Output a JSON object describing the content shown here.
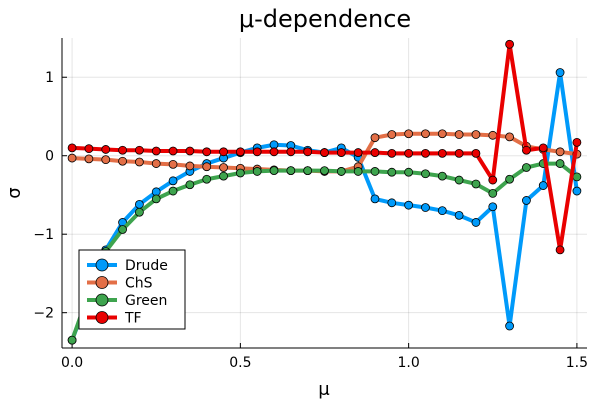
{
  "chart_data": {
    "type": "line",
    "title": "μ-dependence",
    "xlabel": "μ",
    "ylabel": "σ",
    "xlim": [
      -0.03,
      1.53
    ],
    "ylim": [
      -2.45,
      1.5
    ],
    "xticks": [
      0.0,
      0.5,
      1.0,
      1.5
    ],
    "xtick_labels": [
      "0.0",
      "0.5",
      "1.0",
      "1.5"
    ],
    "yticks": [
      -2,
      -1,
      0,
      1
    ],
    "ytick_labels": [
      "−2",
      "−1",
      "0",
      "1"
    ],
    "grid": true,
    "legend_position": "bottom-left",
    "x": [
      0.0,
      0.05,
      0.1,
      0.15,
      0.2,
      0.25,
      0.3,
      0.35,
      0.4,
      0.45,
      0.5,
      0.55,
      0.6,
      0.65,
      0.7,
      0.75,
      0.8,
      0.85,
      0.9,
      0.95,
      1.0,
      1.05,
      1.1,
      1.15,
      1.2,
      1.25,
      1.3,
      1.35,
      1.4,
      1.45,
      1.5
    ],
    "series": [
      {
        "name": "Drude",
        "color": "#009AFA",
        "values": [
          -2.35,
          -1.78,
          -1.2,
          -0.85,
          -0.62,
          -0.46,
          -0.32,
          -0.2,
          -0.1,
          -0.03,
          0.04,
          0.1,
          0.14,
          0.13,
          0.07,
          0.04,
          0.1,
          -0.02,
          -0.55,
          -0.6,
          -0.63,
          -0.66,
          -0.7,
          -0.76,
          -0.85,
          -0.65,
          -2.17,
          -0.57,
          -0.38,
          1.06,
          -0.45
        ]
      },
      {
        "name": "ChS",
        "color": "#E36F47",
        "values": [
          -0.03,
          -0.04,
          -0.05,
          -0.07,
          -0.08,
          -0.1,
          -0.11,
          -0.13,
          -0.14,
          -0.15,
          -0.16,
          -0.17,
          -0.18,
          -0.19,
          -0.19,
          -0.2,
          -0.2,
          -0.14,
          0.23,
          0.27,
          0.28,
          0.28,
          0.28,
          0.27,
          0.27,
          0.26,
          0.24,
          0.12,
          0.08,
          0.05,
          0.02
        ]
      },
      {
        "name": "Green",
        "color": "#3EA44E",
        "values": [
          -2.35,
          -1.75,
          -1.22,
          -0.94,
          -0.72,
          -0.55,
          -0.45,
          -0.37,
          -0.3,
          -0.26,
          -0.22,
          -0.2,
          -0.19,
          -0.19,
          -0.19,
          -0.19,
          -0.2,
          -0.2,
          -0.2,
          -0.21,
          -0.21,
          -0.23,
          -0.26,
          -0.31,
          -0.36,
          -0.48,
          -0.3,
          -0.15,
          -0.1,
          -0.1,
          -0.27
        ]
      },
      {
        "name": "TF",
        "color": "#E90000",
        "values": [
          0.1,
          0.09,
          0.08,
          0.07,
          0.07,
          0.06,
          0.06,
          0.06,
          0.05,
          0.05,
          0.05,
          0.05,
          0.05,
          0.05,
          0.05,
          0.04,
          0.04,
          0.04,
          0.04,
          0.03,
          0.03,
          0.03,
          0.03,
          0.03,
          0.03,
          -0.31,
          1.42,
          0.07,
          0.1,
          -1.2,
          0.17
        ]
      }
    ]
  }
}
